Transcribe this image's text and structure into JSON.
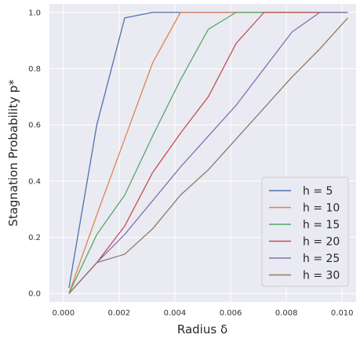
{
  "chart_data": {
    "type": "line",
    "xlabel": "Radius δ",
    "ylabel": "Stagnation Probability p*",
    "xlim": [
      -0.0005,
      0.0105
    ],
    "ylim": [
      -0.03,
      1.03
    ],
    "grid": true,
    "legend_position": "bottom-right",
    "x_ticks": [
      0.0,
      0.002,
      0.004,
      0.006,
      0.008,
      0.01
    ],
    "x_tick_labels": [
      "0.000",
      "0.002",
      "0.004",
      "0.006",
      "0.008",
      "0.010"
    ],
    "y_ticks": [
      0.0,
      0.2,
      0.4,
      0.6,
      0.8,
      1.0
    ],
    "y_tick_labels": [
      "0.0",
      "0.2",
      "0.4",
      "0.6",
      "0.8",
      "1.0"
    ],
    "x": [
      0.0002,
      0.0012,
      0.0022,
      0.0032,
      0.0042,
      0.0052,
      0.0062,
      0.0072,
      0.0082,
      0.0092,
      0.0102
    ],
    "series": [
      {
        "name": "h = 5",
        "color": "#4c72b0",
        "values": [
          0.02,
          0.6,
          0.98,
          1.0,
          1.0,
          1.0,
          1.0,
          1.0,
          1.0,
          1.0,
          1.0
        ]
      },
      {
        "name": "h = 10",
        "color": "#dd8452",
        "values": [
          0.0,
          0.28,
          0.55,
          0.82,
          1.0,
          1.0,
          1.0,
          1.0,
          1.0,
          1.0,
          1.0
        ]
      },
      {
        "name": "h = 15",
        "color": "#55a868",
        "values": [
          0.0,
          0.21,
          0.35,
          0.56,
          0.76,
          0.94,
          1.0,
          1.0,
          1.0,
          1.0,
          1.0
        ]
      },
      {
        "name": "h = 20",
        "color": "#c44e52",
        "values": [
          0.0,
          0.11,
          0.24,
          0.43,
          0.57,
          0.7,
          0.89,
          1.0,
          1.0,
          1.0,
          1.0
        ]
      },
      {
        "name": "h = 25",
        "color": "#8172b3",
        "values": [
          0.0,
          0.11,
          0.21,
          0.33,
          0.45,
          0.56,
          0.67,
          0.8,
          0.93,
          1.0,
          1.0
        ]
      },
      {
        "name": "h = 30",
        "color": "#937860",
        "values": [
          0.0,
          0.11,
          0.14,
          0.23,
          0.35,
          0.44,
          0.55,
          0.66,
          0.77,
          0.87,
          0.98
        ]
      }
    ]
  },
  "colors": {
    "plot_background": "#eaeaf2",
    "grid": "#ffffff",
    "legend_background": "#eaeaf2",
    "legend_border": "#cccccc"
  }
}
